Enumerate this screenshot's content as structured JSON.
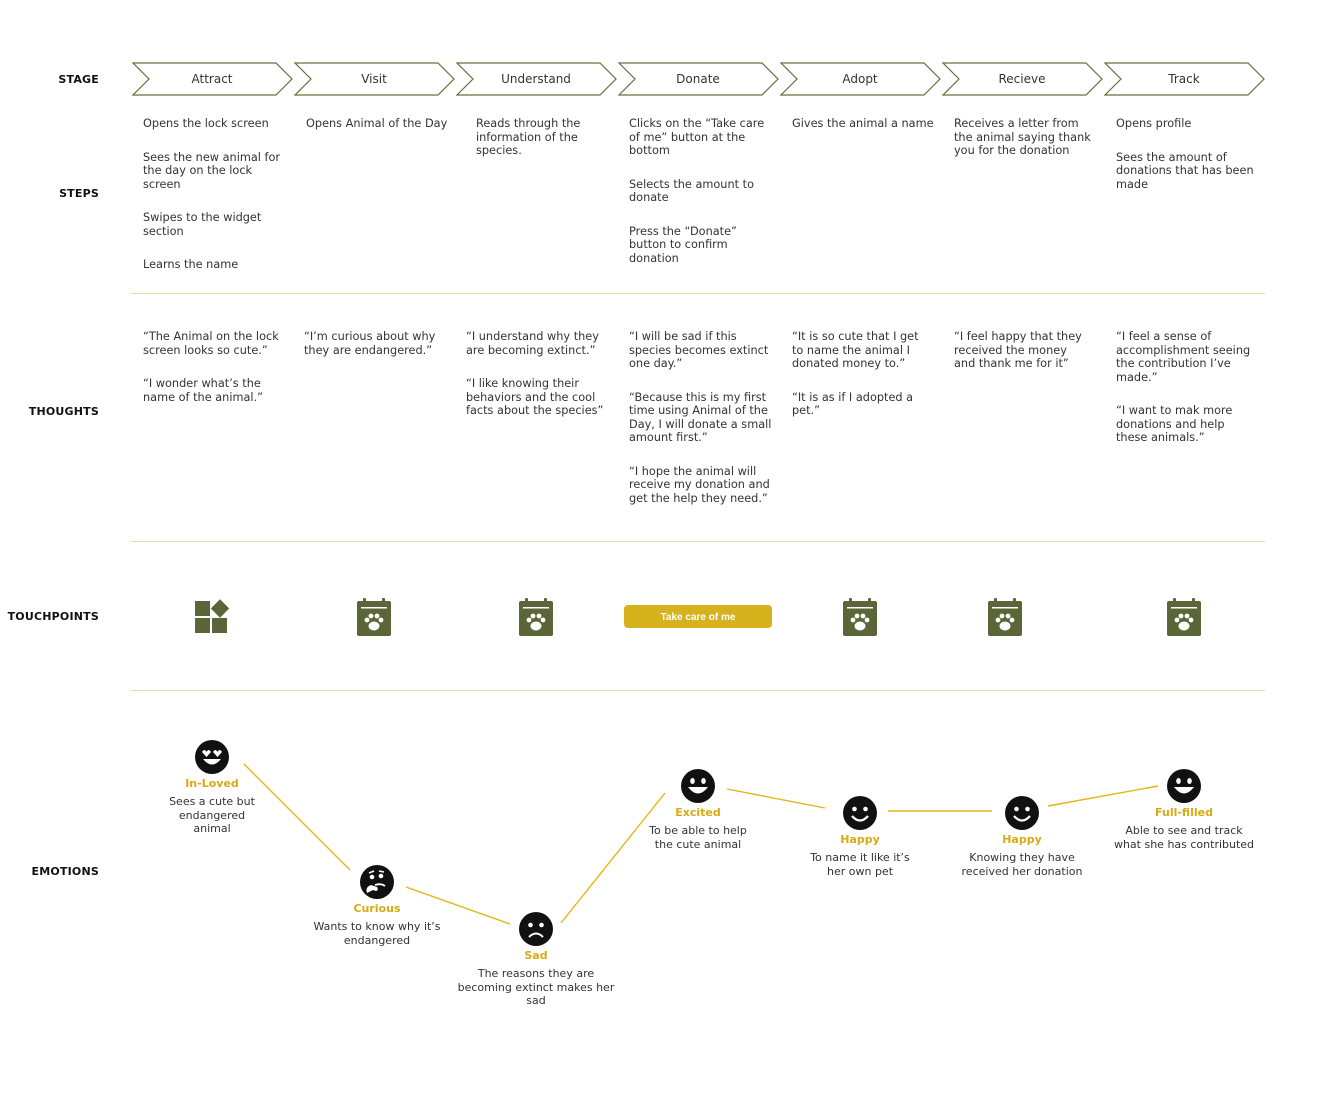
{
  "rows": {
    "stage": "STAGE",
    "steps": "STEPS",
    "thoughts": "THOUGHTS",
    "touchpoints": "TOUCHPOINTS",
    "emotions": "EMOTIONS"
  },
  "stages": [
    {
      "label": "Attract"
    },
    {
      "label": "Visit"
    },
    {
      "label": "Understand"
    },
    {
      "label": "Donate"
    },
    {
      "label": "Adopt"
    },
    {
      "label": "Recieve"
    },
    {
      "label": "Track"
    }
  ],
  "steps": [
    [
      "Opens the lock screen",
      "Sees the new animal for the day on the lock screen",
      "Swipes to the widget section",
      "Learns the name"
    ],
    [
      "Opens Animal of the Day"
    ],
    [
      "Reads through the information of the species."
    ],
    [
      "Clicks on the “Take care of me” button at the bottom",
      "Selects the amount to donate",
      "Press the “Donate” button to confirm donation"
    ],
    [
      "Gives the animal a name"
    ],
    [
      "Receives a letter from the animal saying thank you for the donation"
    ],
    [
      "Opens profile",
      "Sees the amount of donations that has been made"
    ]
  ],
  "thoughts": [
    [
      "“The Animal on the lock screen looks so cute.”",
      "“I wonder what’s the name of the animal.”"
    ],
    [
      "“I’m curious about why they are endangered.”"
    ],
    [
      "“I understand why they are becoming extinct.”",
      "“I like knowing their behaviors and the cool facts about the species”"
    ],
    [
      "“I will be sad if this species becomes extinct one day.”",
      "“Because this is my first time using Animal of the Day, I will donate a small amount first.”",
      "“I hope the animal will receive my donation and get the help they need.”"
    ],
    [
      "“It is so cute that I get to name the animal I donated money to.”",
      "“It is as if I adopted a pet.”"
    ],
    [
      "“I feel happy that they received the money and thank me for it”"
    ],
    [
      "“I feel a sense of accomplishment seeing the contribution I’ve made.”",
      "“I want to mak more donations and help these animals.”"
    ]
  ],
  "touchpoints": {
    "icons": [
      "widgets-icon",
      "calendar-paw-icon",
      "calendar-paw-icon",
      "calendar-paw-icon",
      "calendar-paw-icon",
      "calendar-paw-icon"
    ],
    "button_label": "Take care of me"
  },
  "emotions": [
    {
      "name": "In-Loved",
      "desc": "Sees a cute but endangered animal",
      "face": "heart-eyes-face-icon"
    },
    {
      "name": "Curious",
      "desc": "Wants to know why it’s endangered",
      "face": "thinking-face-icon"
    },
    {
      "name": "Sad",
      "desc": "The reasons they are becoming extinct makes her sad",
      "face": "sad-face-icon"
    },
    {
      "name": "Excited",
      "desc": "To be able to help the cute animal",
      "face": "grin-face-icon"
    },
    {
      "name": "Happy",
      "desc": "To name it like it’s her own pet",
      "face": "smile-face-icon"
    },
    {
      "name": "Happy",
      "desc": "Knowing they have received her donation",
      "face": "smile-face-icon"
    },
    {
      "name": "Full-filled",
      "desc": "Able to see and track what she has contributed",
      "face": "grin-face-icon"
    }
  ],
  "colors": {
    "olive": "#5b6638",
    "gold": "#d6b21c",
    "gold_text": "#d9aa12",
    "divider": "#ecdca0"
  }
}
